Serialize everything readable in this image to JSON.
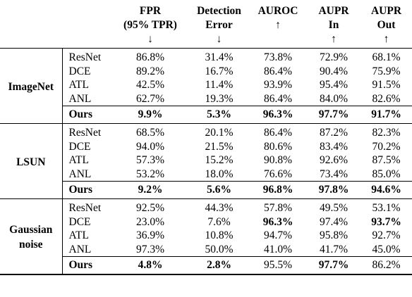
{
  "headers": {
    "fpr": [
      "FPR",
      "(95% TPR)",
      "↓"
    ],
    "det": [
      "Detection",
      "Error",
      "↓"
    ],
    "auroc": [
      "AUROC",
      "↑"
    ],
    "aupr_in": [
      "AUPR",
      "In",
      "↑"
    ],
    "aupr_out": [
      "AUPR",
      "Out",
      "↑"
    ]
  },
  "groups": [
    {
      "label": [
        "ImageNet"
      ],
      "rows": [
        {
          "model": "ResNet",
          "fpr": "86.8%",
          "det": "31.4%",
          "auroc": "73.8%",
          "in": "72.9%",
          "out": "68.1%"
        },
        {
          "model": "DCE",
          "fpr": "89.2%",
          "det": "16.7%",
          "auroc": "86.4%",
          "in": "90.4%",
          "out": "75.9%"
        },
        {
          "model": "ATL",
          "fpr": "42.5%",
          "det": "11.4%",
          "auroc": "93.9%",
          "in": "95.4%",
          "out": "91.5%"
        },
        {
          "model": "ANL",
          "fpr": "62.7%",
          "det": "19.3%",
          "auroc": "86.4%",
          "in": "84.0%",
          "out": "82.6%"
        }
      ],
      "ours": {
        "model": "Ours",
        "fpr": "9.9%",
        "det": "5.3%",
        "auroc": "96.3%",
        "in": "97.7%",
        "out": "91.7%"
      }
    },
    {
      "label": [
        "LSUN"
      ],
      "rows": [
        {
          "model": "ResNet",
          "fpr": "68.5%",
          "det": "20.1%",
          "auroc": "86.4%",
          "in": "87.2%",
          "out": "82.3%"
        },
        {
          "model": "DCE",
          "fpr": "94.0%",
          "det": "21.5%",
          "auroc": "80.6%",
          "in": "83.4%",
          "out": "70.2%"
        },
        {
          "model": "ATL",
          "fpr": "57.3%",
          "det": "15.2%",
          "auroc": "90.8%",
          "in": "92.6%",
          "out": "87.5%"
        },
        {
          "model": "ANL",
          "fpr": "53.2%",
          "det": "18.0%",
          "auroc": "76.6%",
          "in": "73.4%",
          "out": "85.0%"
        }
      ],
      "ours": {
        "model": "Ours",
        "fpr": "9.2%",
        "det": "5.6%",
        "auroc": "96.8%",
        "in": "97.8%",
        "out": "94.6%"
      }
    },
    {
      "label": [
        "Gaussian",
        "noise"
      ],
      "rows": [
        {
          "model": "ResNet",
          "fpr": "92.5%",
          "det": "44.3%",
          "auroc": "57.8%",
          "in": "49.5%",
          "out": "53.1%"
        },
        {
          "model": "DCE",
          "fpr": "23.0%",
          "det": "7.6%",
          "auroc": "96.3%",
          "in": "97.4%",
          "out": "93.7%"
        },
        {
          "model": "ATL",
          "fpr": "36.9%",
          "det": "10.8%",
          "auroc": "94.7%",
          "in": "95.8%",
          "out": "92.7%"
        },
        {
          "model": "ANL",
          "fpr": "97.3%",
          "det": "50.0%",
          "auroc": "41.0%",
          "in": "41.7%",
          "out": "45.0%"
        }
      ],
      "ours": {
        "model": "Ours",
        "fpr": "4.8%",
        "det": "2.8%",
        "auroc": "95.5%",
        "in": "97.7%",
        "out": "86.2%"
      }
    }
  ]
}
